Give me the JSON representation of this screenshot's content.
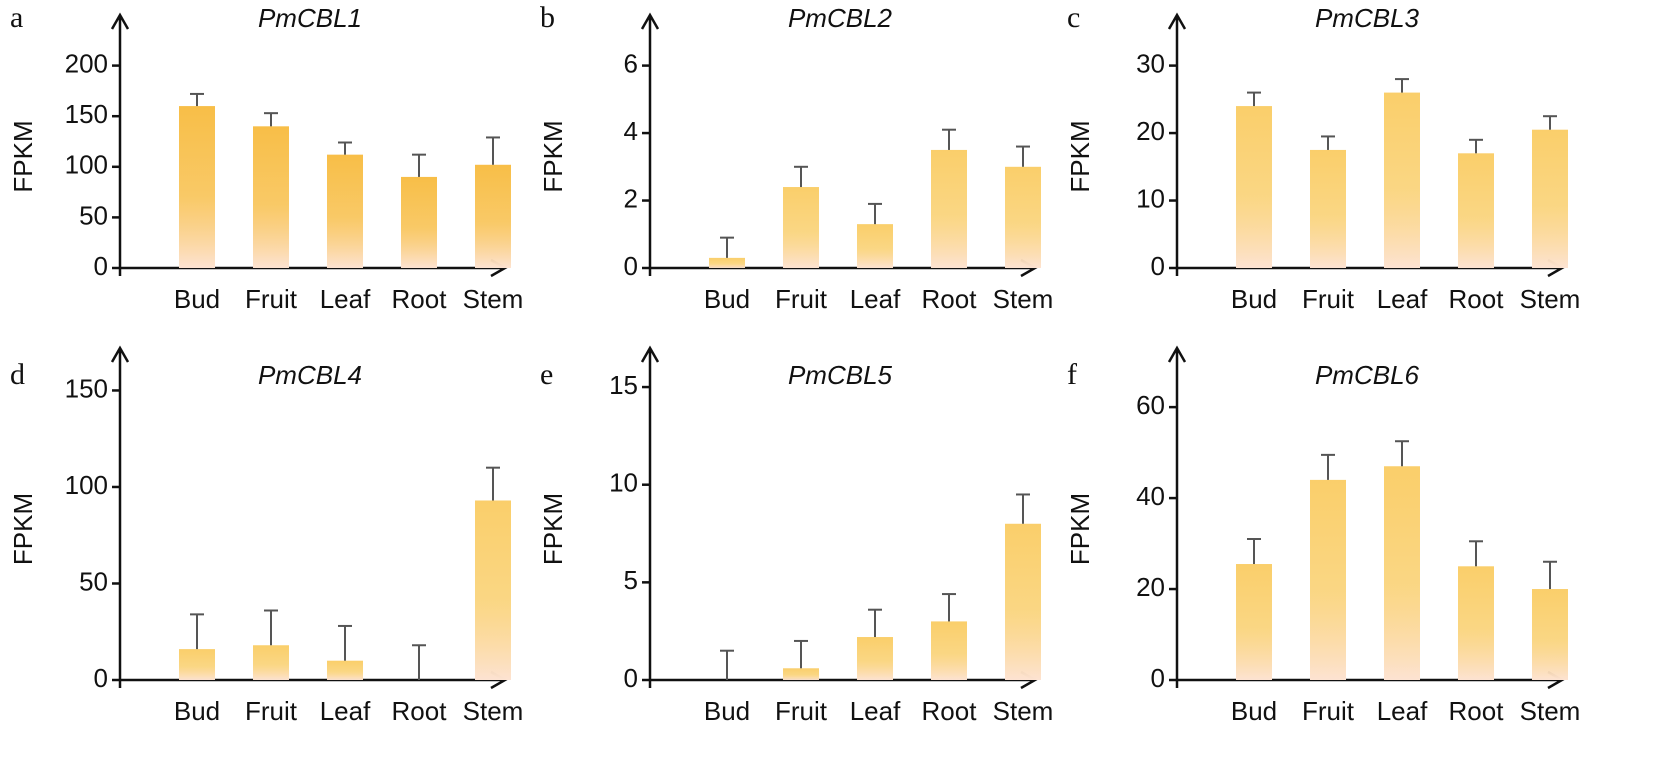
{
  "chart_data": [
    {
      "type": "bar",
      "panel": "a",
      "title": "PmCBL1",
      "ylabel": "FPKM",
      "categories": [
        "Bud",
        "Fruit",
        "Leaf",
        "Root",
        "Stem"
      ],
      "values": [
        160,
        140,
        112,
        90,
        102
      ],
      "errors": [
        12,
        13,
        12,
        22,
        27
      ],
      "color": "#f7b733",
      "ylim": [
        0,
        250
      ],
      "yticks": [
        0,
        50,
        100,
        150,
        200
      ]
    },
    {
      "type": "bar",
      "panel": "b",
      "title": "PmCBL2",
      "ylabel": "FPKM",
      "categories": [
        "Bud",
        "Fruit",
        "Leaf",
        "Root",
        "Stem"
      ],
      "values": [
        0.3,
        2.4,
        1.3,
        3.5,
        3.0
      ],
      "errors": [
        0.6,
        0.6,
        0.6,
        0.6,
        0.6
      ],
      "color": "#f9c95a",
      "ylim": [
        0,
        7.5
      ],
      "yticks": [
        0,
        2,
        4,
        6
      ]
    },
    {
      "type": "bar",
      "panel": "c",
      "title": "PmCBL3",
      "ylabel": "FPKM",
      "categories": [
        "Bud",
        "Fruit",
        "Leaf",
        "Root",
        "Stem"
      ],
      "values": [
        24,
        17.5,
        26,
        17,
        20.5
      ],
      "errors": [
        2,
        2,
        2,
        2,
        2
      ],
      "color": "#f9c95a",
      "ylim": [
        0,
        37.5
      ],
      "yticks": [
        0,
        10,
        20,
        30
      ]
    },
    {
      "type": "bar",
      "panel": "d",
      "title": "PmCBL4",
      "ylabel": "FPKM",
      "categories": [
        "Bud",
        "Fruit",
        "Leaf",
        "Root",
        "Stem"
      ],
      "values": [
        16,
        18,
        10,
        0,
        93
      ],
      "errors": [
        18,
        18,
        18,
        18,
        17
      ],
      "color": "#f9c95a",
      "ylim": [
        0,
        172
      ],
      "yticks": [
        0,
        50,
        100,
        150
      ]
    },
    {
      "type": "bar",
      "panel": "e",
      "title": "PmCBL5",
      "ylabel": "FPKM",
      "categories": [
        "Bud",
        "Fruit",
        "Leaf",
        "Root",
        "Stem"
      ],
      "values": [
        0,
        0.6,
        2.2,
        3,
        8
      ],
      "errors": [
        1.5,
        1.4,
        1.4,
        1.4,
        1.5
      ],
      "color": "#f9c95a",
      "ylim": [
        0,
        17
      ],
      "yticks": [
        0,
        5,
        10,
        15
      ]
    },
    {
      "type": "bar",
      "panel": "f",
      "title": "PmCBL6",
      "ylabel": "FPKM",
      "categories": [
        "Bud",
        "Fruit",
        "Leaf",
        "Root",
        "Stem"
      ],
      "values": [
        25.5,
        44,
        47,
        25,
        20
      ],
      "errors": [
        5.5,
        5.5,
        5.5,
        5.5,
        6
      ],
      "color": "#f9c95a",
      "ylim": [
        0,
        73
      ],
      "yticks": [
        0,
        20,
        40,
        60
      ]
    }
  ]
}
